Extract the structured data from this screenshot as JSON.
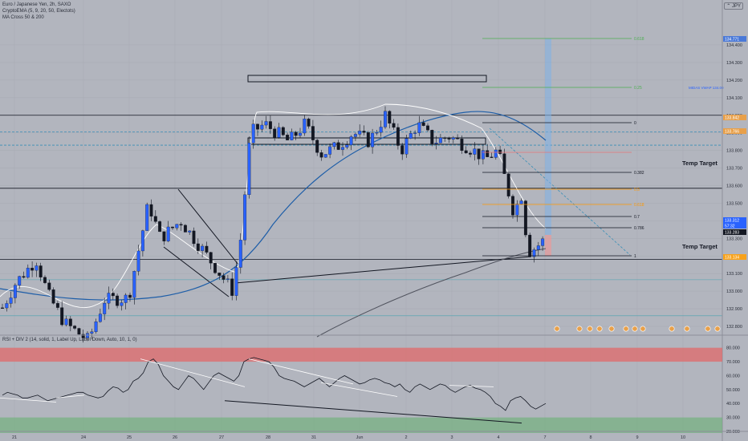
{
  "legend": {
    "title": "Euro / Japanese Yen, 2h, SAXO",
    "lines": [
      "CryptoEMA (5, 9, 20, 50, Electots)",
      "MA Cross 50 & 200"
    ],
    "rsi": "RSI + DIV 2 (14, solid, 1, Label Up, Label Down, Auto, 10, 1, 0)"
  },
  "currency": "JPY",
  "colors": {
    "bg": "#b2b5be",
    "up": "#2962ff",
    "down": "#131722",
    "grid": "#a7aab3",
    "ema_blue": "#1e5ea8",
    "ma200": "#50535e",
    "fib_green": "#4caf50",
    "fib_orange": "#ff9800",
    "fib_red": "#e57373",
    "rsi_red": "#e06a6a",
    "rsi_green": "#6fb07a"
  },
  "chart_data": {
    "type": "candlestick",
    "price_ticks": [
      "134.400",
      "134.300",
      "134.200",
      "134.100",
      "134.000",
      "133.900",
      "133.800",
      "133.700",
      "133.600",
      "133.500",
      "133.400",
      "133.300",
      "133.200",
      "133.100",
      "133.000",
      "132.900",
      "132.800"
    ],
    "price_labels": [
      {
        "text": "134.771",
        "color": "#4a79d8"
      },
      {
        "text": "133.842",
        "color": "#e8a04a"
      },
      {
        "text": "133.766",
        "color": "#e8a04a"
      },
      {
        "text": "133.312",
        "color": "#2962ff"
      },
      {
        "text": "57:32",
        "color": "#2962ff"
      },
      {
        "text": "133.283",
        "color": "#131722"
      },
      {
        "text": "133.134",
        "color": "#f7a21b"
      }
    ],
    "time_labels": [
      "21",
      "24",
      "25",
      "26",
      "27",
      "28",
      "31",
      "Jun",
      "2",
      "3",
      "4",
      "7",
      "8",
      "9",
      "10"
    ],
    "fib_levels": [
      "0.618",
      "0.25",
      "0",
      "0.382",
      "0.5",
      "0.618",
      "0.7",
      "0.786",
      "1"
    ],
    "annotations": [
      "Temp Target",
      "Temp Target",
      "MIDAS VWAP 134.00"
    ],
    "rsi_ticks": [
      "80.000",
      "70.000",
      "60.000",
      "50.000",
      "40.000",
      "30.000",
      "20.000"
    ],
    "rsi_values": [
      46,
      48,
      47,
      46,
      44,
      44,
      45,
      46,
      44,
      42,
      43,
      44,
      45,
      46,
      47,
      48,
      48,
      46,
      45,
      44,
      45,
      49,
      52,
      51,
      48,
      50,
      56,
      58,
      62,
      70,
      72,
      68,
      60,
      56,
      52,
      50,
      55,
      60,
      58,
      54,
      50,
      55,
      60,
      62,
      60,
      58,
      56,
      60,
      70,
      72,
      73,
      72,
      71,
      70,
      66,
      60,
      58,
      57,
      56,
      54,
      52,
      54,
      56,
      58,
      55,
      52,
      55,
      58,
      60,
      58,
      56,
      54,
      55,
      57,
      58,
      57,
      55,
      54,
      52,
      54,
      50,
      48,
      52,
      54,
      52,
      50,
      52,
      54,
      53,
      50,
      48,
      50,
      52,
      53,
      51,
      50,
      48,
      45,
      40,
      38,
      35,
      42,
      44,
      45,
      42,
      38,
      36,
      38,
      40
    ],
    "rsi_ylim": [
      20,
      85
    ]
  }
}
